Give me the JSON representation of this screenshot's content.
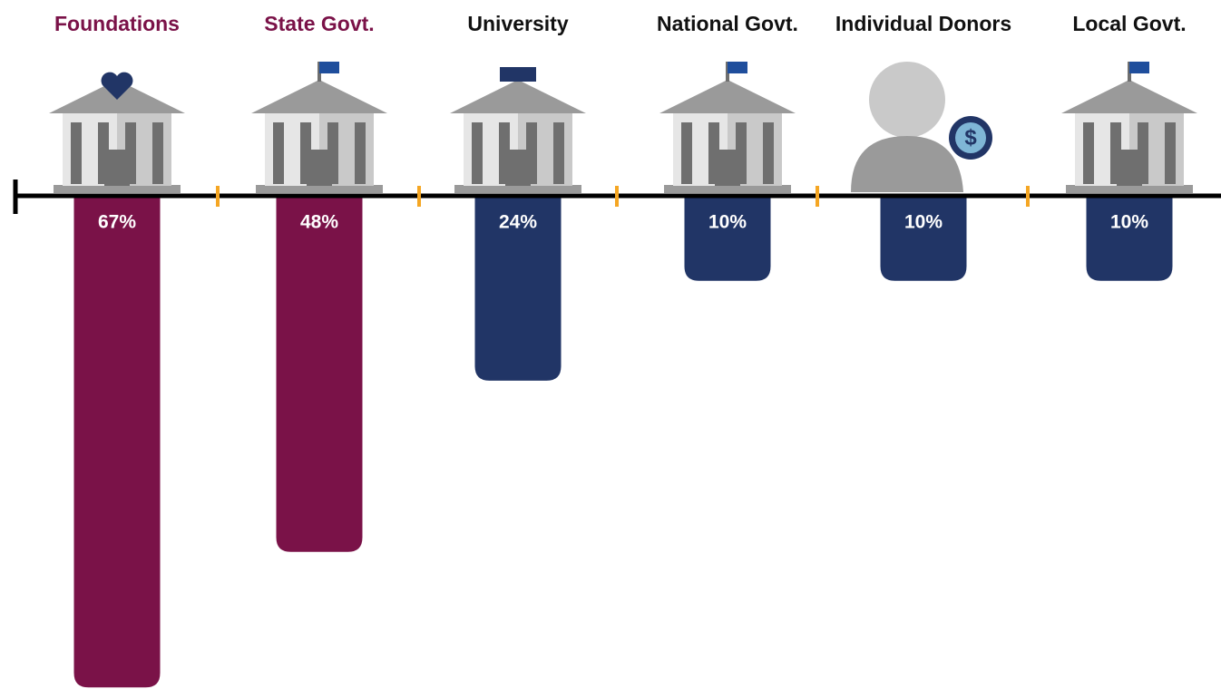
{
  "chart_data": {
    "type": "bar",
    "categories": [
      "Foundations",
      "State Govt.",
      "University",
      "National Govt.",
      "Individual Donors",
      "Local Govt."
    ],
    "values": [
      67,
      48,
      24,
      10,
      10,
      10
    ],
    "value_labels": [
      "67%",
      "48%",
      "24%",
      "10%",
      "10%",
      "10%"
    ],
    "colors": [
      "#7a1248",
      "#7a1248",
      "#213566",
      "#213566",
      "#213566",
      "#213566"
    ]
  }
}
